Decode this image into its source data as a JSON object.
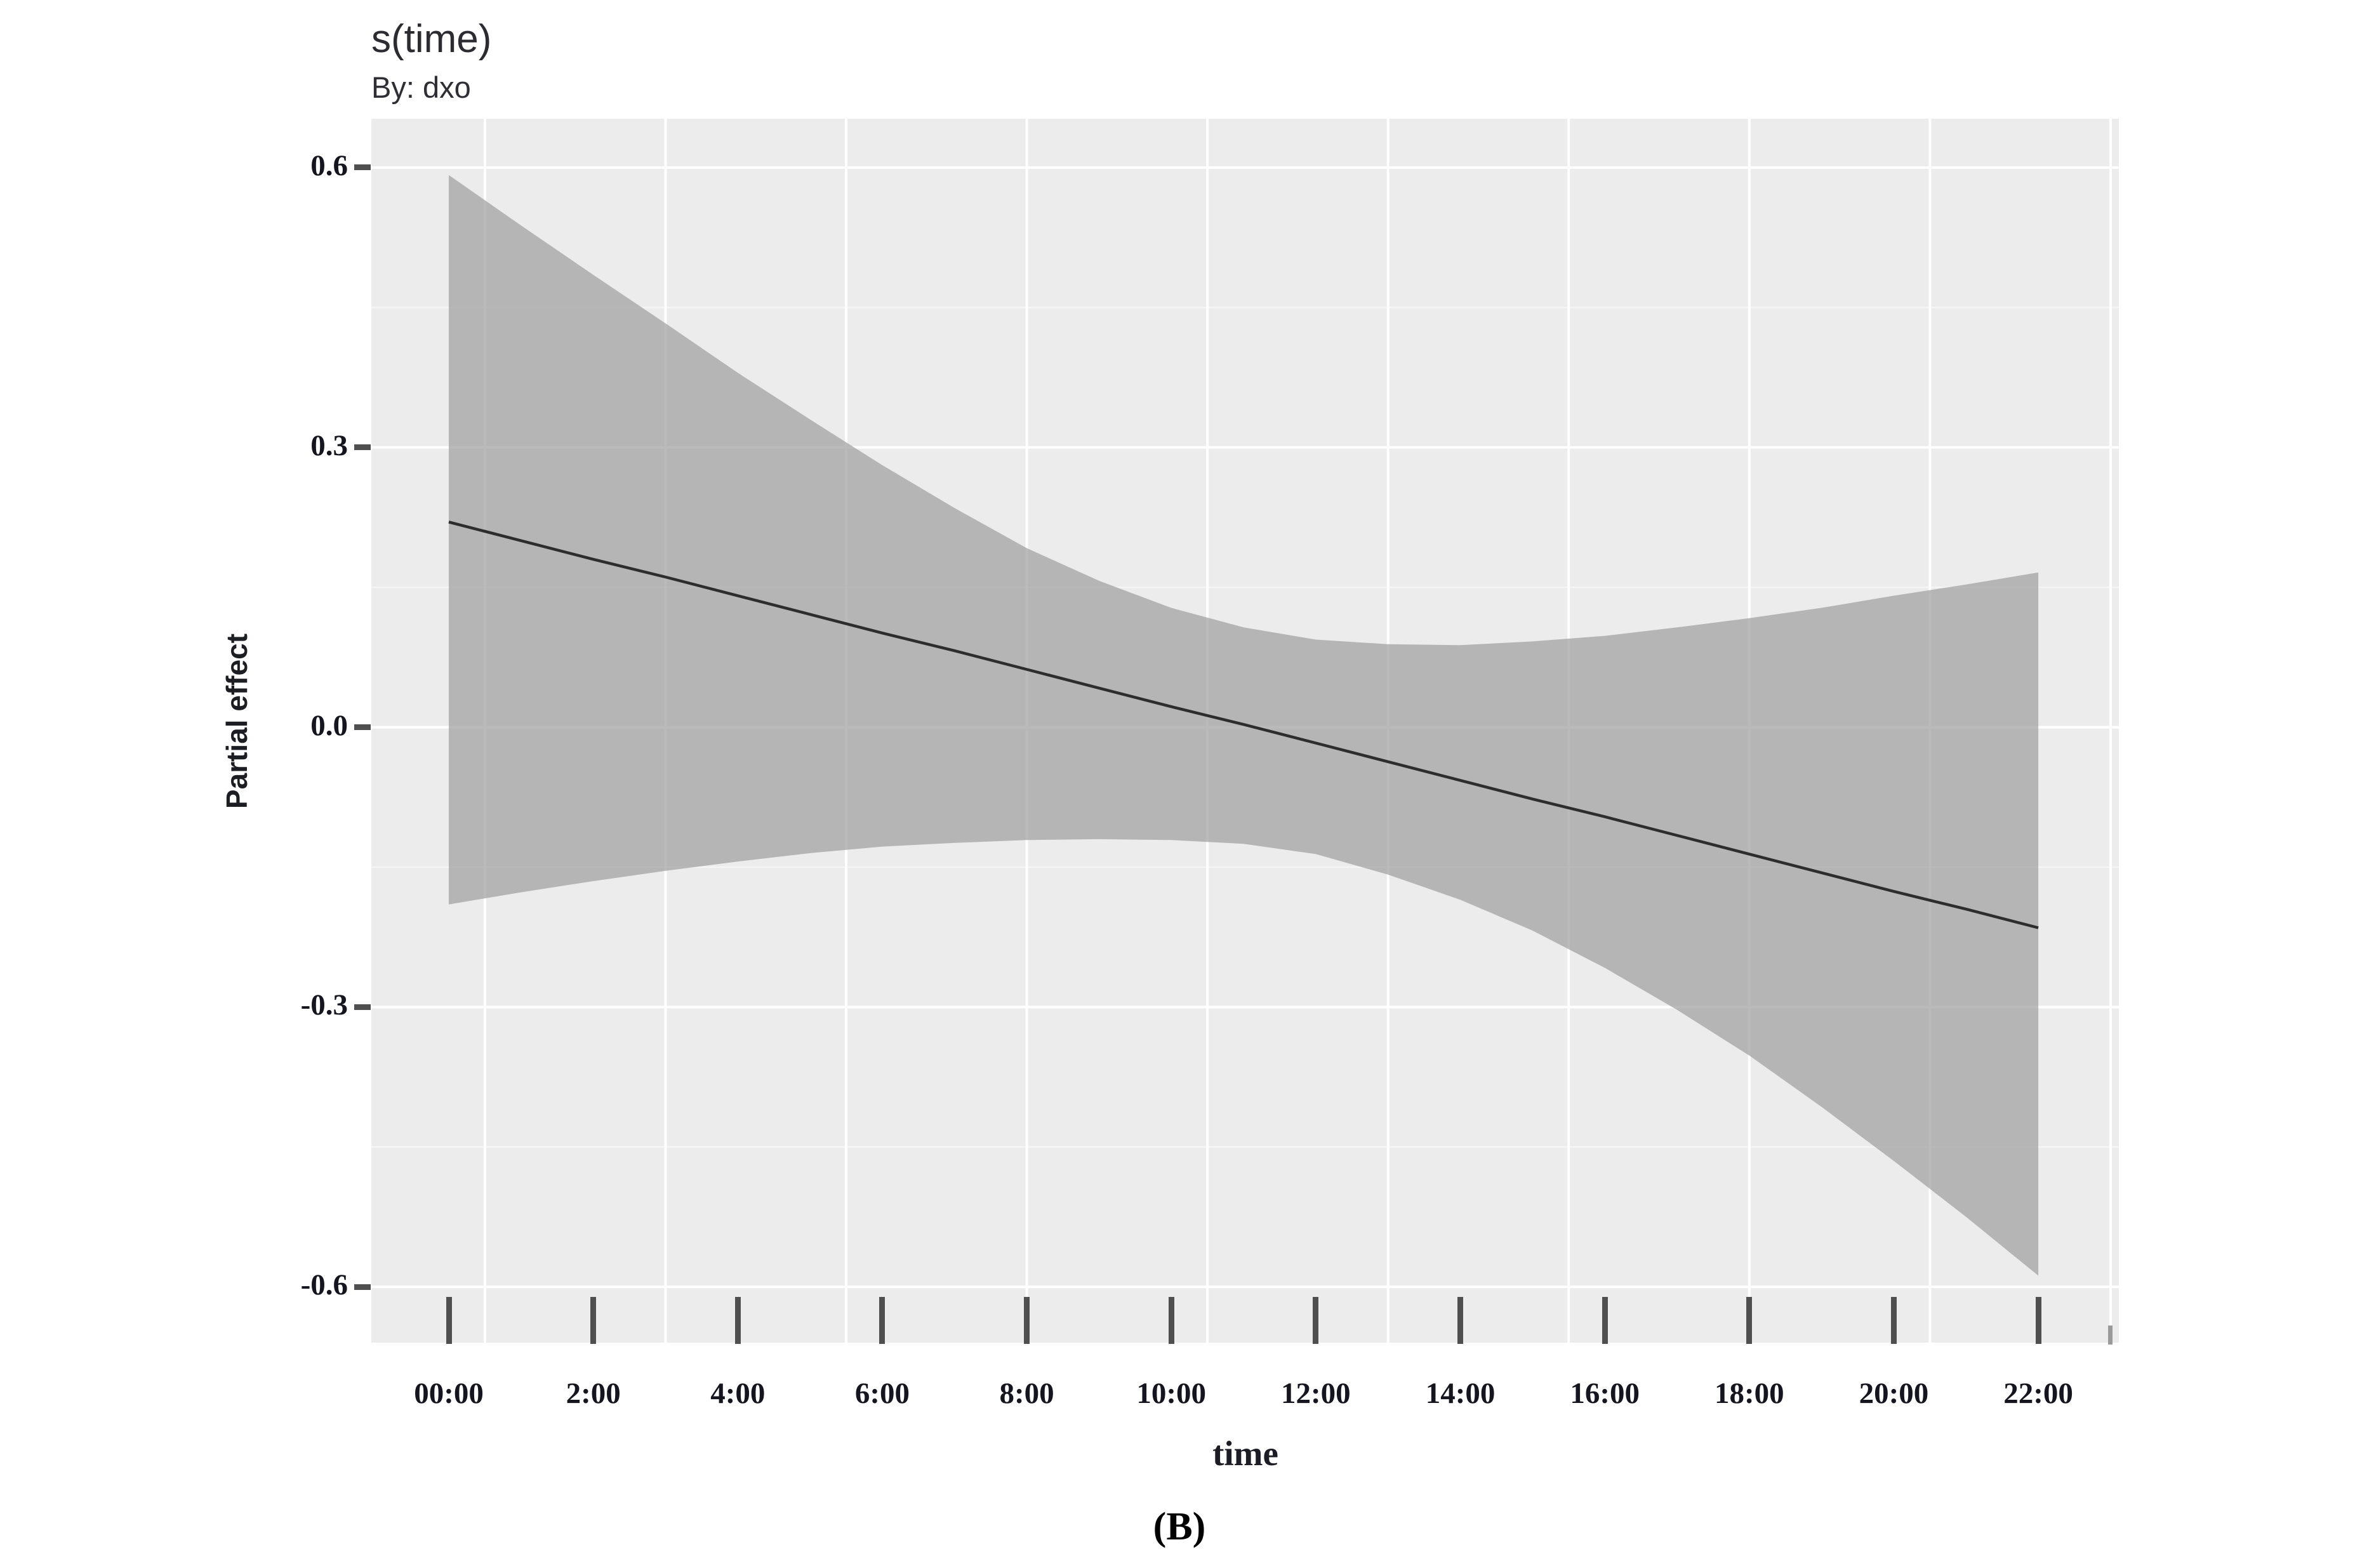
{
  "header": {
    "title": "s(time)",
    "subtitle": "By: dxo"
  },
  "y_axis": {
    "label": "Partial effect",
    "tick_labels": [
      "0.6",
      "0.3",
      "0.0",
      "-0.3",
      "-0.6"
    ]
  },
  "x_axis": {
    "label": "time",
    "tick_labels": [
      "00:00",
      "2:00",
      "4:00",
      "6:00",
      "8:00",
      "10:00",
      "12:00",
      "14:00",
      "16:00",
      "18:00",
      "20:00",
      "22:00"
    ]
  },
  "caption": "(B)",
  "colors": {
    "page_bg": "#ffffff",
    "panel_bg": "#ececec",
    "band": "#a3a3a3",
    "band_opacity": 0.75,
    "fit_line": "#2d2d2d",
    "gridline": "#ffffff",
    "tick_mark": "#4f4f4f",
    "tick_text": "#15151f",
    "title_text": "#2b2b31"
  },
  "chart_data": {
    "type": "line",
    "subtype": "gam-smooth-with-confidence-band",
    "title": "s(time)",
    "subtitle": "By: dxo",
    "xlabel": "time",
    "ylabel": "Partial effect",
    "x_unit": "time of day (hours)",
    "xlim": [
      -1.072,
      23.115
    ],
    "ylim": [
      -0.6598,
      0.6524
    ],
    "grid": "on",
    "legend_position": "none",
    "x_major_ticks_h": [
      0,
      2,
      4,
      6,
      8,
      10,
      12,
      14,
      16,
      18,
      20,
      22
    ],
    "x_tick_labels": [
      "00:00",
      "2:00",
      "4:00",
      "6:00",
      "8:00",
      "10:00",
      "12:00",
      "14:00",
      "16:00",
      "18:00",
      "20:00",
      "22:00"
    ],
    "x_minor_ticks_h": [
      23
    ],
    "x_gridlines_h": [
      0.5,
      3,
      5.5,
      8,
      10.5,
      13,
      15.5,
      18,
      20.5,
      23
    ],
    "y_major_ticks": [
      0.6,
      0.3,
      0.0,
      -0.3,
      -0.6
    ],
    "y_minor_ticks": [
      0.45,
      0.15,
      -0.15,
      -0.45
    ],
    "hours": [
      0,
      1,
      2,
      3,
      4,
      5,
      6,
      7,
      8,
      9,
      10,
      11,
      12,
      13,
      14,
      15,
      16,
      17,
      18,
      19,
      20,
      21,
      22
    ],
    "fit": [
      0.22,
      0.2,
      0.18,
      0.161,
      0.141,
      0.121,
      0.101,
      0.082,
      0.062,
      0.042,
      0.022,
      0.003,
      -0.017,
      -0.037,
      -0.057,
      -0.077,
      -0.096,
      -0.116,
      -0.136,
      -0.156,
      -0.176,
      -0.195,
      -0.215
    ],
    "ci_upper": [
      0.592,
      0.538,
      0.485,
      0.433,
      0.38,
      0.33,
      0.281,
      0.235,
      0.192,
      0.157,
      0.128,
      0.107,
      0.094,
      0.089,
      0.088,
      0.092,
      0.098,
      0.107,
      0.117,
      0.128,
      0.141,
      0.153,
      0.166
    ],
    "ci_lower": [
      -0.19,
      -0.177,
      -0.165,
      -0.154,
      -0.144,
      -0.135,
      -0.128,
      -0.124,
      -0.121,
      -0.12,
      -0.121,
      -0.125,
      -0.136,
      -0.158,
      -0.185,
      -0.218,
      -0.258,
      -0.303,
      -0.352,
      -0.407,
      -0.465,
      -0.525,
      -0.588
    ]
  }
}
